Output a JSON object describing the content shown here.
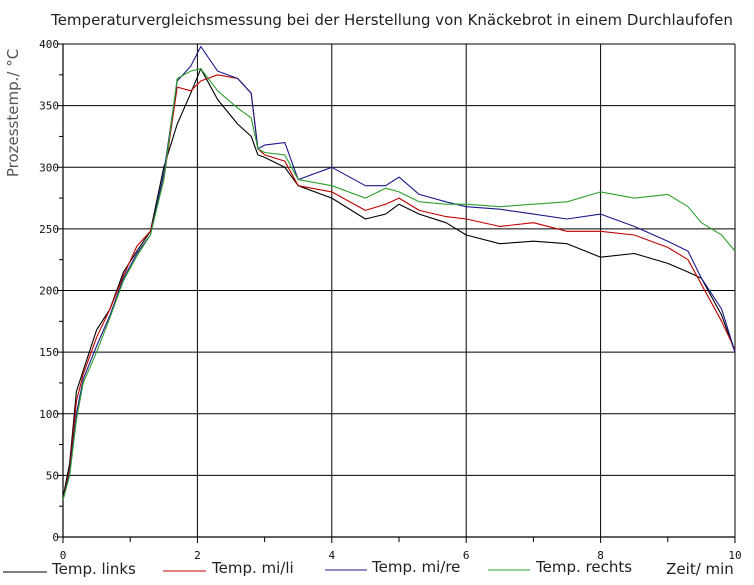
{
  "chart_data": {
    "type": "line",
    "title": "Temperaturvergleichsmessung bei der Herstellung von Knäckebrot in einem Durchlaufofen",
    "ylabel": "Prozesstemp./ °C",
    "xlabel": "Zeit/ min",
    "xlim": [
      0,
      10
    ],
    "ylim": [
      0,
      400
    ],
    "xticks": [
      0,
      2,
      4,
      6,
      8,
      10
    ],
    "yticks": [
      0,
      50,
      100,
      150,
      200,
      250,
      300,
      350,
      400
    ],
    "grid": true,
    "legend_position": "bottom",
    "series": [
      {
        "name": "Temp. links",
        "color": "#000000",
        "x": [
          0,
          0.1,
          0.2,
          0.3,
          0.5,
          0.7,
          0.9,
          1.1,
          1.3,
          1.5,
          1.7,
          1.9,
          2.05,
          2.3,
          2.6,
          2.8,
          2.9,
          3.0,
          3.3,
          3.5,
          4.0,
          4.5,
          4.8,
          5.0,
          5.3,
          5.7,
          6.0,
          6.5,
          7.0,
          7.5,
          8.0,
          8.5,
          9.0,
          9.3,
          9.5,
          9.8,
          10.0
        ],
        "y": [
          32,
          60,
          118,
          135,
          168,
          185,
          215,
          232,
          248,
          300,
          335,
          360,
          380,
          355,
          335,
          325,
          310,
          308,
          300,
          285,
          275,
          258,
          262,
          270,
          262,
          255,
          245,
          238,
          240,
          238,
          227,
          230,
          222,
          215,
          210,
          180,
          150
        ]
      },
      {
        "name": "Temp. mi/li",
        "color": "#c00000",
        "x": [
          0,
          0.1,
          0.2,
          0.3,
          0.5,
          0.7,
          0.9,
          1.1,
          1.3,
          1.5,
          1.7,
          1.9,
          2.05,
          2.3,
          2.6,
          2.8,
          2.9,
          3.0,
          3.3,
          3.5,
          4.0,
          4.5,
          4.8,
          5.0,
          5.3,
          5.7,
          6.0,
          6.5,
          7.0,
          7.5,
          8.0,
          8.5,
          9.0,
          9.3,
          9.5,
          9.8,
          10.0
        ],
        "y": [
          30,
          55,
          110,
          132,
          162,
          185,
          212,
          236,
          248,
          290,
          365,
          362,
          370,
          375,
          372,
          360,
          315,
          310,
          305,
          285,
          280,
          265,
          270,
          275,
          265,
          260,
          258,
          252,
          255,
          248,
          248,
          245,
          235,
          225,
          205,
          175,
          152
        ]
      },
      {
        "name": "Temp. mi/re",
        "color": "#1a1a8c",
        "x": [
          0,
          0.1,
          0.2,
          0.3,
          0.5,
          0.7,
          0.9,
          1.1,
          1.3,
          1.5,
          1.7,
          1.9,
          2.05,
          2.3,
          2.6,
          2.8,
          2.9,
          3.0,
          3.3,
          3.5,
          4.0,
          4.5,
          4.8,
          5.0,
          5.3,
          5.7,
          6.0,
          6.5,
          7.0,
          7.5,
          8.0,
          8.5,
          9.0,
          9.3,
          9.5,
          9.8,
          10.0
        ],
        "y": [
          30,
          52,
          100,
          128,
          155,
          180,
          210,
          230,
          245,
          295,
          370,
          382,
          398,
          378,
          372,
          360,
          315,
          318,
          320,
          290,
          300,
          285,
          285,
          292,
          278,
          272,
          268,
          266,
          262,
          258,
          262,
          252,
          240,
          232,
          210,
          185,
          150
        ]
      },
      {
        "name": "Temp. rechts",
        "color": "#2ea02e",
        "x": [
          0,
          0.1,
          0.2,
          0.3,
          0.5,
          0.7,
          0.9,
          1.1,
          1.3,
          1.5,
          1.7,
          1.9,
          2.05,
          2.3,
          2.6,
          2.8,
          2.9,
          3.0,
          3.3,
          3.5,
          4.0,
          4.5,
          4.8,
          5.0,
          5.3,
          5.7,
          6.0,
          6.5,
          7.0,
          7.5,
          8.0,
          8.5,
          9.0,
          9.3,
          9.5,
          9.8,
          10.0
        ],
        "y": [
          30,
          50,
          95,
          125,
          150,
          178,
          208,
          228,
          245,
          290,
          372,
          378,
          380,
          362,
          348,
          340,
          315,
          312,
          310,
          290,
          285,
          275,
          283,
          280,
          272,
          270,
          270,
          268,
          270,
          272,
          280,
          275,
          278,
          268,
          255,
          245,
          232
        ]
      }
    ]
  }
}
